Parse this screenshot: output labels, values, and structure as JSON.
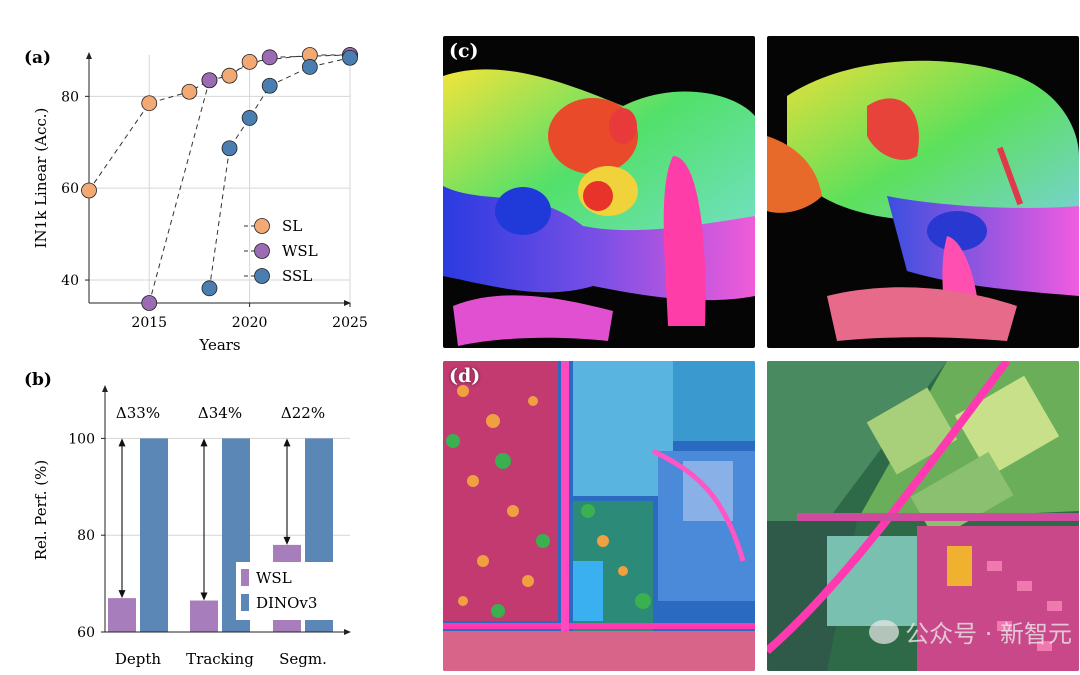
{
  "chart_data": [
    {
      "panel_label": "(a)",
      "type": "scatter",
      "xlabel": "Years",
      "ylabel": "IN1k Linear (Acc.)",
      "xlim": [
        2012,
        2025
      ],
      "ylim": [
        35,
        89
      ],
      "xticks": [
        2015,
        2020,
        2025
      ],
      "yticks": [
        40,
        60,
        80
      ],
      "grid": true,
      "legend_position": "bottom-right",
      "series": [
        {
          "name": "SL",
          "color": "#f2a974",
          "x": [
            2012,
            2015,
            2017,
            2018,
            2019,
            2020,
            2023,
            2025
          ],
          "y": [
            59.5,
            78.5,
            81,
            83.5,
            84.5,
            87.5,
            89,
            89
          ]
        },
        {
          "name": "WSL",
          "color": "#9b6bb3",
          "x": [
            2015,
            2018,
            2021,
            2025
          ],
          "y": [
            35,
            83.5,
            88.5,
            89
          ]
        },
        {
          "name": "SSL",
          "color": "#4a7eb0",
          "x": [
            2018,
            2019,
            2020,
            2021,
            2023,
            2025
          ],
          "y": [
            38.2,
            68.7,
            75.3,
            82.3,
            86.4,
            88.4
          ]
        }
      ]
    },
    {
      "panel_label": "(b)",
      "type": "bar",
      "ylabel": "Rel. Perf. (%)",
      "ylim": [
        60,
        110
      ],
      "yticks": [
        60,
        80,
        100
      ],
      "grid": true,
      "legend_position": "bottom-right",
      "categories": [
        "Depth",
        "Tracking",
        "Segm."
      ],
      "series": [
        {
          "name": "WSL",
          "color": "#a87dbb",
          "values": [
            67,
            66.5,
            78
          ]
        },
        {
          "name": "DINOv3",
          "color": "#5a87b5",
          "values": [
            100,
            100,
            100
          ]
        }
      ],
      "annotations": [
        "Δ33%",
        "Δ34%",
        "Δ22%"
      ]
    }
  ],
  "images": [
    {
      "label": "(c)",
      "description_name": "cat-pca-feature-map-1"
    },
    {
      "label": "",
      "description_name": "cat-pca-feature-map-2"
    },
    {
      "label": "(d)",
      "description_name": "satellite-feature-map-1"
    },
    {
      "label": "",
      "description_name": "satellite-feature-map-2"
    }
  ],
  "watermark": {
    "text": "公众号 · 新智元"
  }
}
